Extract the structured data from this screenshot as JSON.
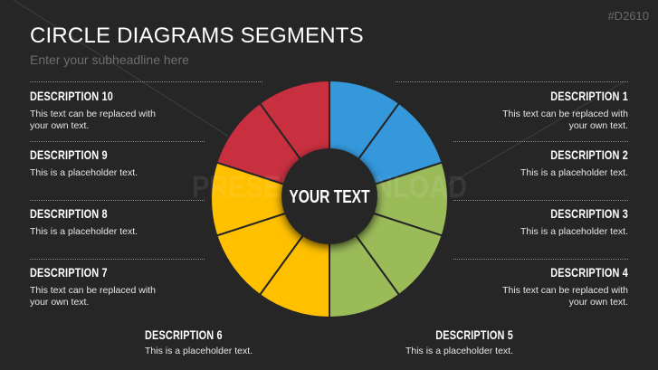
{
  "title": "CIRCLE DIAGRAMS SEGMENTS",
  "subtitle": "Enter your subheadline here",
  "slide_code": "#D2610",
  "center_text": "YOUR TEXT",
  "watermark": "PRESENTATIONLOAD",
  "colors": {
    "background": "#262626",
    "blue": "#3498db",
    "green": "#9bbb59",
    "yellow": "#ffc000",
    "red": "#c8303f"
  },
  "segments": [
    {
      "n": 1,
      "color": "#3498db"
    },
    {
      "n": 2,
      "color": "#3498db"
    },
    {
      "n": 3,
      "color": "#9bbb59"
    },
    {
      "n": 4,
      "color": "#9bbb59"
    },
    {
      "n": 5,
      "color": "#9bbb59"
    },
    {
      "n": 6,
      "color": "#ffc000"
    },
    {
      "n": 7,
      "color": "#ffc000"
    },
    {
      "n": 8,
      "color": "#ffc000"
    },
    {
      "n": 9,
      "color": "#c8303f"
    },
    {
      "n": 10,
      "color": "#c8303f"
    }
  ],
  "descriptions": {
    "d1": {
      "heading": "DESCRIPTION 1",
      "text": "This text can be replaced with your own text."
    },
    "d2": {
      "heading": "DESCRIPTION 2",
      "text": "This is a placeholder text."
    },
    "d3": {
      "heading": "DESCRIPTION 3",
      "text": "This is a placeholder text."
    },
    "d4": {
      "heading": "DESCRIPTION 4",
      "text": "This text can be replaced with your own text."
    },
    "d5": {
      "heading": "DESCRIPTION 5",
      "text": "This is a placeholder text."
    },
    "d6": {
      "heading": "DESCRIPTION 6",
      "text": "This is a placeholder text."
    },
    "d7": {
      "heading": "DESCRIPTION 7",
      "text": "This text can be replaced with your own text."
    },
    "d8": {
      "heading": "DESCRIPTION 8",
      "text": "This is a placeholder text."
    },
    "d9": {
      "heading": "DESCRIPTION 9",
      "text": "This is a placeholder text."
    },
    "d10": {
      "heading": "DESCRIPTION 10",
      "text": "This text can be replaced with your own text."
    }
  }
}
